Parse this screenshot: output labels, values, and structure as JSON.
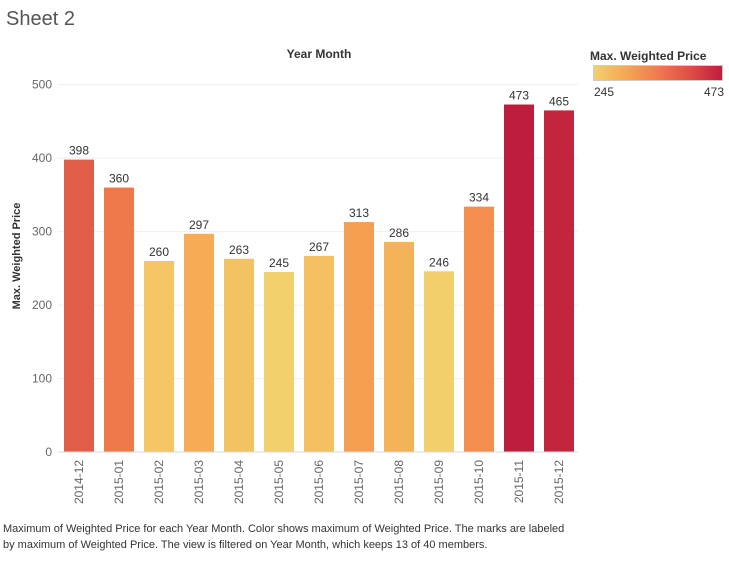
{
  "sheet": {
    "title": "Sheet 2"
  },
  "legend": {
    "title": "Max. Weighted Price",
    "min_label": "245",
    "max_label": "473",
    "gradient_colors": [
      "#f2d06b",
      "#f6a752",
      "#f07a4c",
      "#dc4f46",
      "#bf1d3d"
    ]
  },
  "caption": "Maximum of  Weighted Price for each Year Month.  Color shows maximum of  Weighted Price.  The marks are labeled by maximum of  Weighted Price. The view is filtered on Year Month, which keeps 13 of 40 members.",
  "chart_data": {
    "type": "bar",
    "title": "Year Month",
    "xlabel": "",
    "ylabel": "Max. Weighted Price",
    "categories": [
      "2014-12",
      "2015-01",
      "2015-02",
      "2015-03",
      "2015-04",
      "2015-05",
      "2015-06",
      "2015-07",
      "2015-08",
      "2015-09",
      "2015-10",
      "2015-11",
      "2015-12"
    ],
    "values": [
      398,
      360,
      260,
      297,
      263,
      245,
      267,
      313,
      286,
      246,
      334,
      473,
      465
    ],
    "ylim": [
      0,
      520
    ],
    "yticks": [
      0,
      100,
      200,
      300,
      400,
      500
    ],
    "grid": true,
    "color_scale": {
      "min": 245,
      "max": 473
    }
  }
}
